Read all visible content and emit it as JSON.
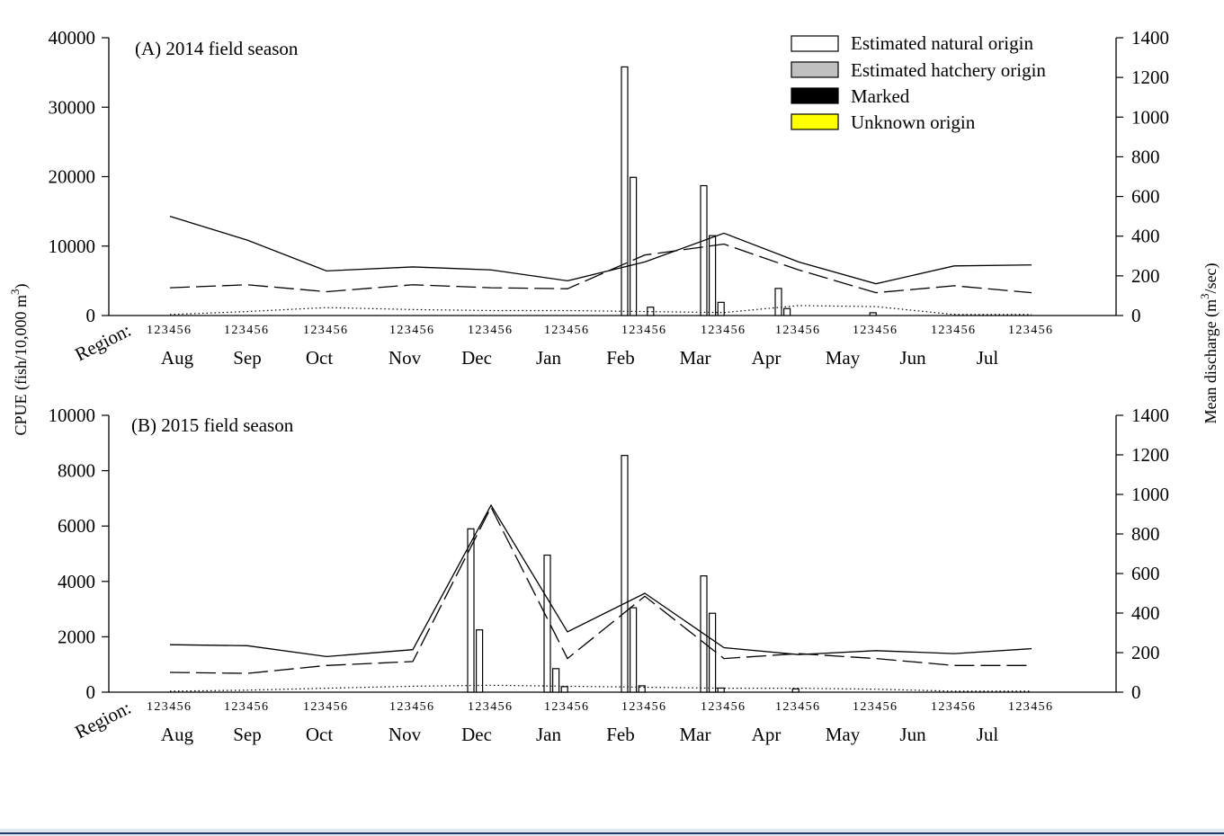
{
  "chart_data": [
    {
      "type": "bar",
      "title": "(A) 2014 field season",
      "region_label": "Region:",
      "region_digits": "123456",
      "months": [
        "Aug",
        "Sep",
        "Oct",
        "Nov",
        "Dec",
        "Jan",
        "Feb",
        "Mar",
        "Apr",
        "May",
        "Jun",
        "Jul"
      ],
      "y_left": {
        "label": "CPUE (fish/10,000 m3)",
        "ylim": [
          0,
          40000
        ],
        "ticks": [
          "0",
          "10000",
          "20000",
          "30000",
          "40000"
        ]
      },
      "y_right": {
        "label": "Mean discharge (m3/sec)",
        "ylim": [
          0,
          1400
        ],
        "ticks": [
          "0",
          "200",
          "400",
          "600",
          "800",
          "1000",
          "1200",
          "1400"
        ]
      },
      "legend": [
        {
          "name": "Estimated natural origin",
          "color": "#ffffff"
        },
        {
          "name": "Estimated hatchery origin",
          "color": "#c0c0c0"
        },
        {
          "name": "Marked",
          "color": "#000000"
        },
        {
          "name": "Unknown origin",
          "color": "#ffff00"
        }
      ],
      "bars": [
        {
          "month": "Feb",
          "region": 1,
          "value": 35800
        },
        {
          "month": "Feb",
          "region": 2,
          "value": 19900
        },
        {
          "month": "Feb",
          "region": 4,
          "value": 1200
        },
        {
          "month": "Mar",
          "region": 1,
          "value": 18700
        },
        {
          "month": "Mar",
          "region": 2,
          "value": 11500
        },
        {
          "month": "Mar",
          "region": 3,
          "value": 1900
        },
        {
          "month": "Apr",
          "region": 1,
          "value": 3900
        },
        {
          "month": "Apr",
          "region": 2,
          "value": 1000
        },
        {
          "month": "May",
          "region": 3,
          "value": 400
        }
      ],
      "discharge_series": [
        {
          "style": "solid",
          "values": [
            500,
            380,
            225,
            245,
            230,
            175,
            270,
            415,
            270,
            160,
            250,
            255
          ]
        },
        {
          "style": "dashed",
          "values": [
            140,
            155,
            120,
            155,
            140,
            135,
            305,
            360,
            230,
            115,
            150,
            115
          ]
        },
        {
          "style": "dotted",
          "values": [
            5,
            20,
            40,
            30,
            25,
            25,
            20,
            15,
            50,
            45,
            5,
            5
          ]
        }
      ]
    },
    {
      "type": "bar",
      "title": "(B) 2015 field season",
      "region_label": "Region:",
      "region_digits": "123456",
      "months": [
        "Aug",
        "Sep",
        "Oct",
        "Nov",
        "Dec",
        "Jan",
        "Feb",
        "Mar",
        "Apr",
        "May",
        "Jun",
        "Jul"
      ],
      "y_left": {
        "ylim": [
          0,
          10000
        ],
        "ticks": [
          "0",
          "2000",
          "4000",
          "6000",
          "8000",
          "10000"
        ]
      },
      "y_right": {
        "ylim": [
          0,
          1400
        ],
        "ticks": [
          "0",
          "200",
          "400",
          "600",
          "800",
          "1000",
          "1200",
          "1400"
        ]
      },
      "bars": [
        {
          "month": "Dec",
          "region": 1,
          "value": 5900
        },
        {
          "month": "Dec",
          "region": 2,
          "value": 2250
        },
        {
          "month": "Jan",
          "region": 1,
          "value": 4950
        },
        {
          "month": "Jan",
          "region": 2,
          "value": 850
        },
        {
          "month": "Jan",
          "region": 3,
          "value": 200
        },
        {
          "month": "Feb",
          "region": 1,
          "value": 8550
        },
        {
          "month": "Feb",
          "region": 2,
          "value": 3050
        },
        {
          "month": "Feb",
          "region": 3,
          "value": 230
        },
        {
          "month": "Mar",
          "region": 1,
          "value": 4200
        },
        {
          "month": "Mar",
          "region": 2,
          "value": 2850
        },
        {
          "month": "Mar",
          "region": 3,
          "value": 150
        },
        {
          "month": "Apr",
          "region": 3,
          "value": 120
        }
      ],
      "discharge_series": [
        {
          "style": "solid",
          "values": [
            240,
            235,
            180,
            215,
            945,
            305,
            500,
            225,
            190,
            210,
            195,
            220
          ]
        },
        {
          "style": "dashed",
          "values": [
            100,
            95,
            135,
            155,
            935,
            170,
            485,
            170,
            195,
            170,
            135,
            135
          ]
        },
        {
          "style": "dotted",
          "values": [
            5,
            10,
            20,
            30,
            35,
            30,
            25,
            20,
            20,
            15,
            5,
            5
          ]
        }
      ]
    }
  ]
}
